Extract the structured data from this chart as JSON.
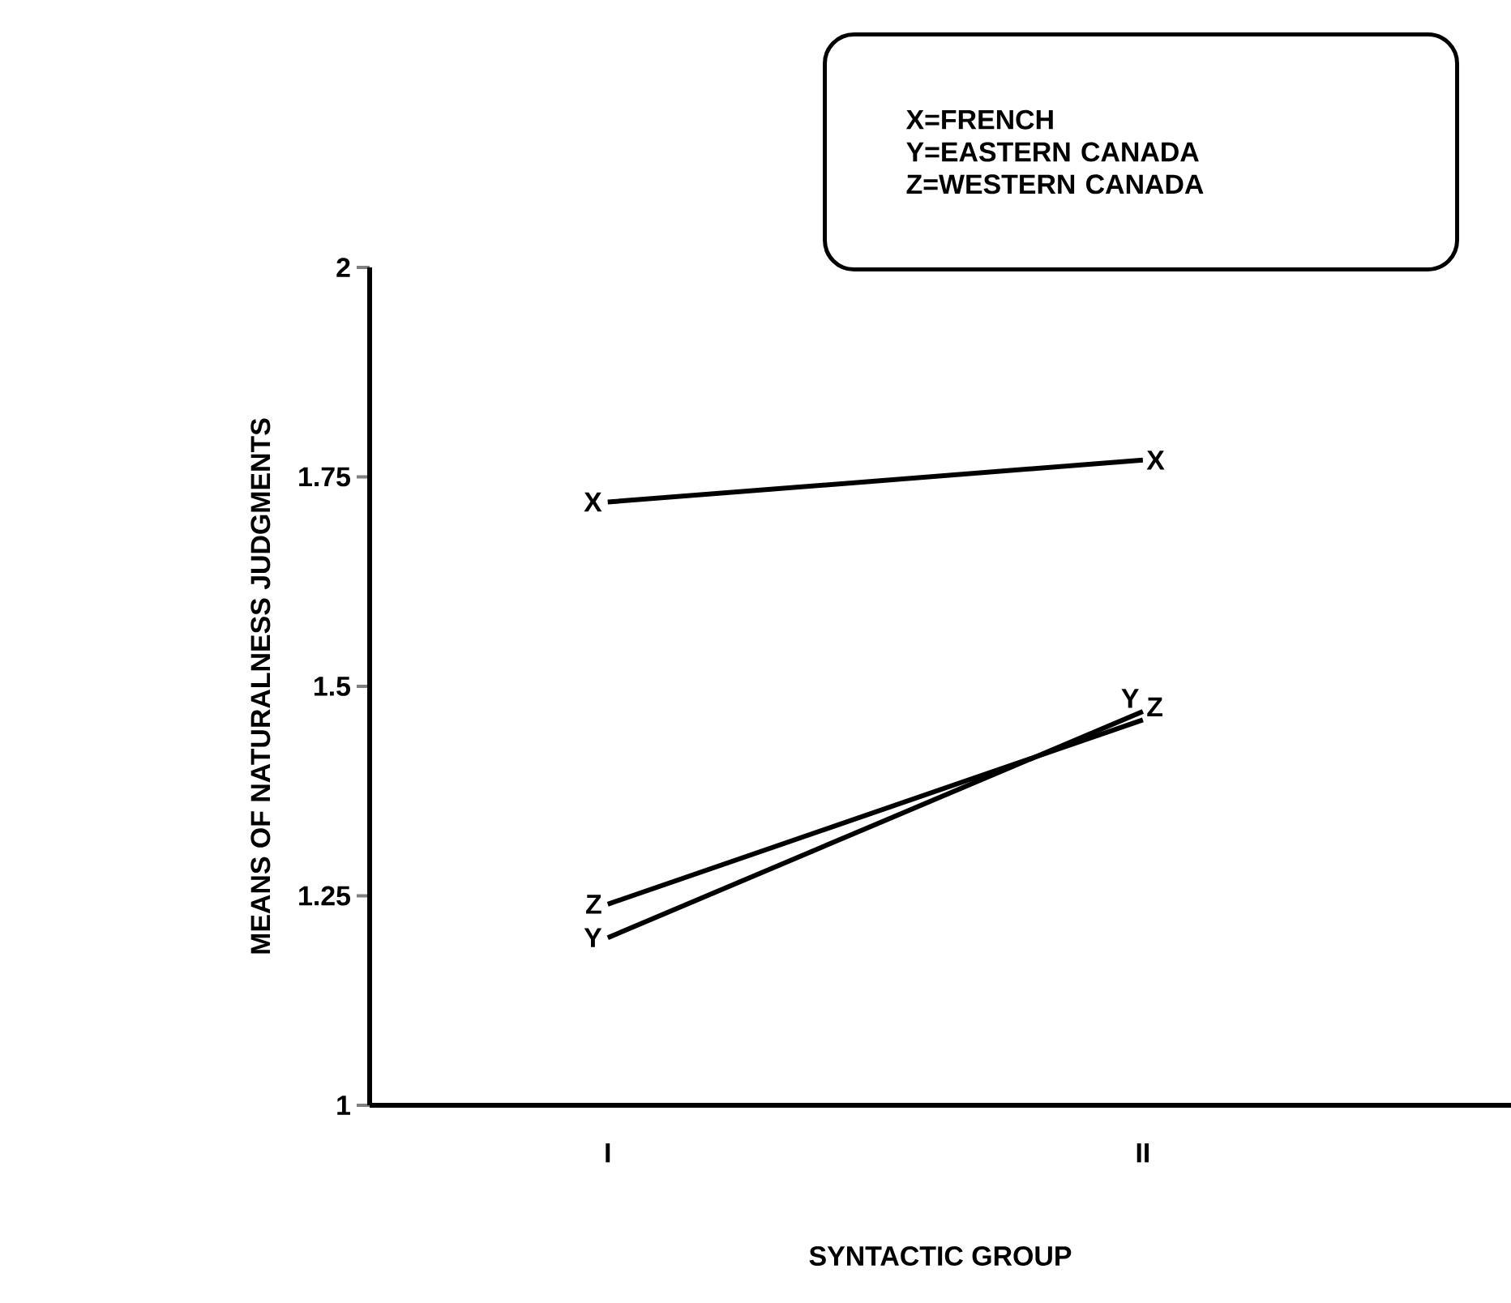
{
  "chart_data": {
    "type": "line",
    "xlabel": "SYNTACTIC GROUP",
    "ylabel": "MEANS OF NATURALNESS JUDGMENTS",
    "categories": [
      "I",
      "II"
    ],
    "series": [
      {
        "name": "X",
        "color": "#000000",
        "values": [
          1.72,
          1.77
        ]
      },
      {
        "name": "Y",
        "color": "#000000",
        "values": [
          1.2,
          1.47
        ]
      },
      {
        "name": "Z",
        "color": "#000000",
        "values": [
          1.24,
          1.46
        ]
      }
    ],
    "ylim": [
      1,
      2
    ],
    "yticks": [
      1,
      1.25,
      1.5,
      1.75,
      2
    ],
    "annotations": [
      "X=FRENCH",
      "Y=EASTERN CANADA",
      "Z=WESTERN CANADA"
    ],
    "grid": false,
    "marker": "none",
    "line_style": "solid"
  }
}
